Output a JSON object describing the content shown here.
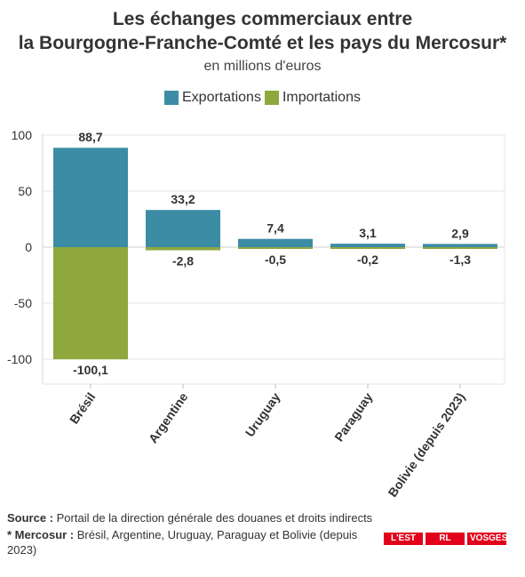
{
  "header": {
    "title_line1": "Les échanges commerciaux entre",
    "title_line2": "la Bourgogne-Franche-Comté et les pays du Mercosur*",
    "subtitle": "en millions d'euros"
  },
  "legend": {
    "items": [
      {
        "label": "Exportations",
        "color": "#3d8ca6"
      },
      {
        "label": "Importations",
        "color": "#8fa83e"
      }
    ]
  },
  "chart_data": {
    "type": "bar",
    "categories": [
      "Brésil",
      "Argentine",
      "Uruguay",
      "Paraguay",
      "Bolivie (depuis 2023)"
    ],
    "series": [
      {
        "name": "Exportations",
        "values": [
          88.7,
          33.2,
          7.4,
          3.1,
          2.9
        ],
        "labels": [
          "88,7",
          "33,2",
          "7,4",
          "3,1",
          "2,9"
        ],
        "color": "#3d8ca6"
      },
      {
        "name": "Importations",
        "values": [
          -100.1,
          -2.8,
          -0.5,
          -0.2,
          -1.3
        ],
        "labels": [
          "-100,1",
          "-2,8",
          "-0,5",
          "-0,2",
          "-1,3"
        ],
        "color": "#8fa83e"
      }
    ],
    "yticks": [
      100,
      50,
      0,
      -50,
      -100
    ],
    "ylim": [
      -120,
      100
    ],
    "stacked": true,
    "grid": true
  },
  "footer": {
    "source_label": "Source :",
    "source_text": "Portail de la direction générale des douanes et droits indirects",
    "note_label": "* Mercosur :",
    "note_text": "Brésil, Argentine, Uruguay, Paraguay et Bolivie (depuis 2023)"
  },
  "logos": {
    "items": [
      "L'EST",
      "RL",
      "VOSGES"
    ]
  }
}
